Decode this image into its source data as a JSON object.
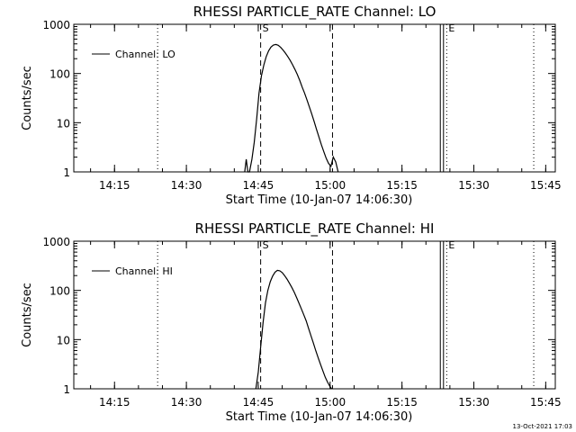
{
  "footer_timestamp": "13-Oct-2021 17:03",
  "chart_data": [
    {
      "type": "line",
      "title": "RHESSI PARTICLE_RATE Channel: LO",
      "xlabel": "Start Time (10-Jan-07 14:06:30)",
      "ylabel": "Counts/sec",
      "y_scale": "log",
      "ylim": [
        1,
        1000
      ],
      "xlim": [
        "14:06:30",
        "15:47:00"
      ],
      "x_tick_labels": [
        "14:15",
        "14:30",
        "14:45",
        "15:00",
        "15:15",
        "15:30",
        "15:45"
      ],
      "y_tick_labels": [
        "1",
        "10",
        "100",
        "1000"
      ],
      "legend": {
        "label": "Channel: LO",
        "placement": "top-left"
      },
      "markers": [
        {
          "time": "14:45:30",
          "style": "dashed",
          "label": "S"
        },
        {
          "time": "15:00:30",
          "style": "dashed",
          "label": ""
        },
        {
          "time": "14:24:00",
          "style": "dotted",
          "label": ""
        },
        {
          "time": "15:23:00",
          "style": "solid",
          "label": ""
        },
        {
          "time": "15:23:40",
          "style": "solid",
          "label": ""
        },
        {
          "time": "15:24:20",
          "style": "dotted",
          "label": "E"
        },
        {
          "time": "15:42:30",
          "style": "dotted",
          "label": ""
        }
      ],
      "series": [
        {
          "name": "Channel: LO",
          "x": [
            "14:42:10",
            "14:42:30",
            "14:42:50",
            "14:43:10",
            "14:43:40",
            "14:44:10",
            "14:44:40",
            "14:45:10",
            "14:45:40",
            "14:46:10",
            "14:46:40",
            "14:47:10",
            "14:47:40",
            "14:48:10",
            "14:48:40",
            "14:49:10",
            "14:49:40",
            "14:50:10",
            "14:50:40",
            "14:51:10",
            "14:51:40",
            "14:52:10",
            "14:52:40",
            "14:53:10",
            "14:53:40",
            "14:54:10",
            "14:54:40",
            "14:55:10",
            "14:55:40",
            "14:56:10",
            "14:56:40",
            "14:57:10",
            "14:57:40",
            "14:58:10",
            "14:58:40",
            "14:59:10",
            "14:59:40",
            "15:00:10",
            "15:00:40",
            "15:01:10",
            "15:01:40"
          ],
          "y": [
            1,
            1.8,
            1,
            1,
            1.8,
            4,
            12,
            40,
            90,
            150,
            220,
            290,
            345,
            380,
            390,
            375,
            340,
            300,
            260,
            220,
            185,
            150,
            120,
            95,
            72,
            53,
            40,
            29,
            21,
            15,
            10.5,
            7.3,
            5.1,
            3.6,
            2.6,
            1.9,
            1.5,
            1.3,
            2,
            1.6,
            1
          ]
        }
      ]
    },
    {
      "type": "line",
      "title": "RHESSI PARTICLE_RATE Channel: HI",
      "xlabel": "Start Time (10-Jan-07 14:06:30)",
      "ylabel": "Counts/sec",
      "y_scale": "log",
      "ylim": [
        1,
        1000
      ],
      "xlim": [
        "14:06:30",
        "15:47:00"
      ],
      "x_tick_labels": [
        "14:15",
        "14:30",
        "14:45",
        "15:00",
        "15:15",
        "15:30",
        "15:45"
      ],
      "y_tick_labels": [
        "1",
        "10",
        "100",
        "1000"
      ],
      "legend": {
        "label": "Channel: HI",
        "placement": "top-left"
      },
      "markers": [
        {
          "time": "14:45:30",
          "style": "dashed",
          "label": "S"
        },
        {
          "time": "15:00:30",
          "style": "dashed",
          "label": ""
        },
        {
          "time": "14:24:00",
          "style": "dotted",
          "label": ""
        },
        {
          "time": "15:23:00",
          "style": "solid",
          "label": ""
        },
        {
          "time": "15:23:40",
          "style": "solid",
          "label": ""
        },
        {
          "time": "15:24:20",
          "style": "dotted",
          "label": "E"
        },
        {
          "time": "15:42:30",
          "style": "dotted",
          "label": ""
        }
      ],
      "series": [
        {
          "name": "Channel: HI",
          "x": [
            "14:44:30",
            "14:45:00",
            "14:45:30",
            "14:46:00",
            "14:46:30",
            "14:47:00",
            "14:47:30",
            "14:48:00",
            "14:48:30",
            "14:49:00",
            "14:49:30",
            "14:50:00",
            "14:50:30",
            "14:51:00",
            "14:51:30",
            "14:52:00",
            "14:52:30",
            "14:53:00",
            "14:53:30",
            "14:54:00",
            "14:54:30",
            "14:55:00",
            "14:55:30",
            "14:56:00",
            "14:56:30",
            "14:57:00",
            "14:57:30",
            "14:58:00",
            "14:58:30",
            "14:59:00",
            "14:59:30",
            "15:00:00",
            "15:00:20"
          ],
          "y": [
            1,
            2.2,
            7,
            22,
            55,
            100,
            150,
            195,
            235,
            255,
            250,
            230,
            200,
            170,
            140,
            115,
            92,
            72,
            55,
            42,
            32,
            24,
            17,
            12,
            8.5,
            6,
            4.3,
            3.1,
            2.3,
            1.7,
            1.35,
            1.1,
            1
          ]
        }
      ]
    }
  ]
}
